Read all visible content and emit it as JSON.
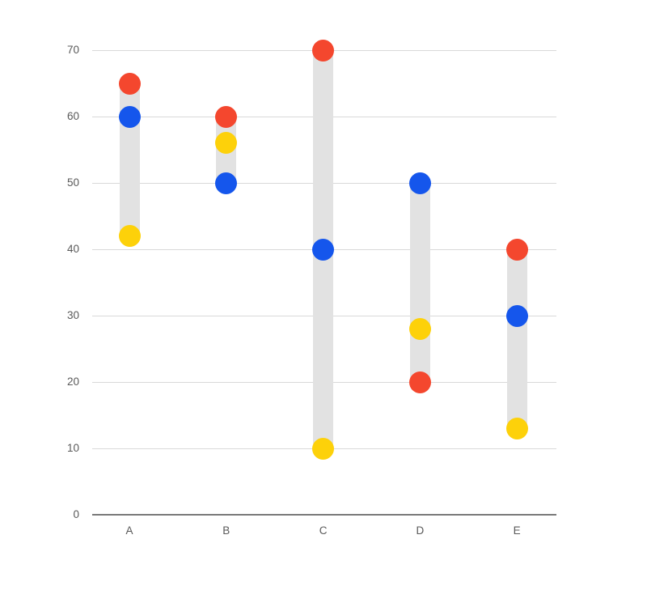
{
  "chart_data": {
    "type": "scatter",
    "subtype": "dumbbell-range",
    "categories": [
      "A",
      "B",
      "C",
      "D",
      "E"
    ],
    "series": [
      {
        "name": "red",
        "color": "#F4472E",
        "values": [
          65,
          60,
          70,
          20,
          40
        ]
      },
      {
        "name": "blue",
        "color": "#1556EC",
        "values": [
          60,
          50,
          40,
          50,
          30
        ]
      },
      {
        "name": "yellow",
        "color": "#FDD10A",
        "values": [
          42,
          56,
          10,
          28,
          13
        ]
      }
    ],
    "ranges": [
      {
        "category": "A",
        "min": 42,
        "max": 65
      },
      {
        "category": "B",
        "min": 50,
        "max": 60
      },
      {
        "category": "C",
        "min": 10,
        "max": 70
      },
      {
        "category": "D",
        "min": 20,
        "max": 50
      },
      {
        "category": "E",
        "min": 13,
        "max": 40
      }
    ],
    "yticks": [
      0,
      10,
      20,
      30,
      40,
      50,
      60,
      70
    ],
    "ylim": [
      0,
      70
    ],
    "grid": true,
    "legend": false,
    "colors": {
      "range_bar": "#E2E2E2",
      "gridline": "#D9D9D9",
      "axis_line": "#7A7A7A",
      "tick_label": "#595959"
    }
  }
}
